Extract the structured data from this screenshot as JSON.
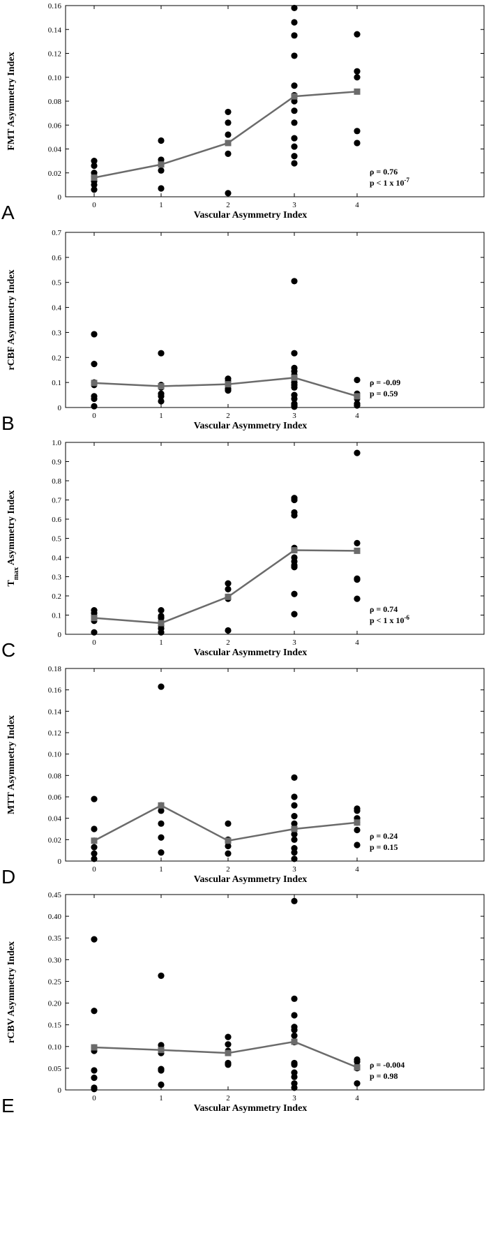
{
  "chart_data": [
    {
      "type": "scatter",
      "panel": "A",
      "xlabel": "Vascular Asymmetry Index",
      "ylabel_main": "FMT Asymmetry Index",
      "ylabel_sub": "",
      "ylabel_tail": "",
      "ylim": [
        0,
        0.16
      ],
      "yticks": [
        "0",
        "0.02",
        "0.04",
        "0.06",
        "0.08",
        "0.10",
        "0.12",
        "0.14",
        "0.16"
      ],
      "xticks": [
        "0",
        "1",
        "2",
        "3",
        "4"
      ],
      "points": {
        "0": [
          0.03,
          0.026,
          0.02,
          0.017,
          0.013,
          0.01,
          0.006
        ],
        "1": [
          0.047,
          0.031,
          0.022,
          0.007
        ],
        "2": [
          0.071,
          0.062,
          0.052,
          0.036,
          0.003
        ],
        "3": [
          0.158,
          0.146,
          0.135,
          0.118,
          0.093,
          0.085,
          0.08,
          0.072,
          0.062,
          0.049,
          0.042,
          0.034,
          0.028
        ],
        "4": [
          0.136,
          0.105,
          0.1,
          0.055,
          0.045
        ]
      },
      "mean_line": [
        0.016,
        0.027,
        0.045,
        0.084,
        0.088
      ],
      "stat_line1": "ρ = 0.76",
      "stat_line2": "p < 1 x 10",
      "stat_exp": "-7",
      "colors": {
        "points": "#000000",
        "mean": "#6b6b6b"
      }
    },
    {
      "type": "scatter",
      "panel": "B",
      "xlabel": "Vascular Asymmetry Index",
      "ylabel_main": "rCBF Asymmetry Index",
      "ylabel_sub": "",
      "ylabel_tail": "",
      "ylim": [
        0,
        0.7
      ],
      "yticks": [
        "0",
        "0.1",
        "0.2",
        "0.3",
        "0.4",
        "0.5",
        "0.6",
        "0.7"
      ],
      "xticks": [
        "0",
        "1",
        "2",
        "3",
        "4"
      ],
      "points": {
        "0": [
          0.293,
          0.174,
          0.1,
          0.09,
          0.045,
          0.035,
          0.005
        ],
        "1": [
          0.217,
          0.09,
          0.08,
          0.055,
          0.045,
          0.025
        ],
        "2": [
          0.115,
          0.105,
          0.09,
          0.075,
          0.068
        ],
        "3": [
          0.505,
          0.217,
          0.158,
          0.145,
          0.13,
          0.1,
          0.09,
          0.08,
          0.05,
          0.035,
          0.015,
          0.008,
          0.003
        ],
        "4": [
          0.11,
          0.055,
          0.045,
          0.035,
          0.015,
          0.008
        ]
      },
      "mean_line": [
        0.098,
        0.085,
        0.093,
        0.119,
        0.045
      ],
      "stat_line1": "ρ = -0.09",
      "stat_line2": "p = 0.59",
      "stat_exp": "",
      "colors": {
        "points": "#000000",
        "mean": "#6b6b6b"
      }
    },
    {
      "type": "scatter",
      "panel": "C",
      "xlabel": "Vascular Asymmetry Index",
      "ylabel_main": "T",
      "ylabel_sub": "max",
      "ylabel_tail": " Asymmetry Index",
      "ylim": [
        0,
        1.0
      ],
      "yticks": [
        "0",
        "0.1",
        "0.2",
        "0.3",
        "0.4",
        "0.5",
        "0.6",
        "0.7",
        "0.8",
        "0.9",
        "1.0"
      ],
      "xticks": [
        "0",
        "1",
        "2",
        "3",
        "4"
      ],
      "points": {
        "0": [
          0.125,
          0.11,
          0.095,
          0.07,
          0.01
        ],
        "1": [
          0.125,
          0.095,
          0.085,
          0.045,
          0.03,
          0.01
        ],
        "2": [
          0.265,
          0.235,
          0.195,
          0.185,
          0.02
        ],
        "3": [
          0.71,
          0.7,
          0.635,
          0.62,
          0.45,
          0.4,
          0.38,
          0.36,
          0.35,
          0.21,
          0.105
        ],
        "4": [
          0.945,
          0.475,
          0.29,
          0.285,
          0.185
        ]
      },
      "mean_line": [
        0.085,
        0.058,
        0.195,
        0.438,
        0.435
      ],
      "stat_line1": "ρ = 0.74",
      "stat_line2": "p < 1 x 10",
      "stat_exp": "-6",
      "colors": {
        "points": "#000000",
        "mean": "#6b6b6b"
      }
    },
    {
      "type": "scatter",
      "panel": "D",
      "xlabel": "Vascular Asymmetry Index",
      "ylabel_main": "MTT Asymmetry Index",
      "ylabel_sub": "",
      "ylabel_tail": "",
      "ylim": [
        0,
        0.18
      ],
      "yticks": [
        "0",
        "0.02",
        "0.04",
        "0.06",
        "0.08",
        "0.10",
        "0.12",
        "0.14",
        "0.16",
        "0.18"
      ],
      "xticks": [
        "0",
        "1",
        "2",
        "3",
        "4"
      ],
      "points": {
        "0": [
          0.058,
          0.03,
          0.019,
          0.013,
          0.007,
          0.002
        ],
        "1": [
          0.163,
          0.052,
          0.047,
          0.035,
          0.022,
          0.008
        ],
        "2": [
          0.035,
          0.02,
          0.018,
          0.014,
          0.007
        ],
        "3": [
          0.078,
          0.06,
          0.052,
          0.042,
          0.035,
          0.03,
          0.025,
          0.02,
          0.012,
          0.008,
          0.002
        ],
        "4": [
          0.049,
          0.047,
          0.04,
          0.036,
          0.029,
          0.015
        ]
      },
      "mean_line": [
        0.019,
        0.052,
        0.019,
        0.03,
        0.036
      ],
      "stat_line1": "ρ = 0.24",
      "stat_line2": "p = 0.15",
      "stat_exp": "",
      "colors": {
        "points": "#000000",
        "mean": "#6b6b6b"
      }
    },
    {
      "type": "scatter",
      "panel": "E",
      "xlabel": "Vascular Asymmetry Index",
      "ylabel_main": "rCBV Asymmetry Index",
      "ylabel_sub": "",
      "ylabel_tail": "",
      "ylim": [
        0,
        0.45
      ],
      "yticks": [
        "0",
        "0.05",
        "0.10",
        "0.15",
        "0.20",
        "0.25",
        "0.30",
        "0.35",
        "0.40",
        "0.45"
      ],
      "xticks": [
        "0",
        "1",
        "2",
        "3",
        "4"
      ],
      "points": {
        "0": [
          0.347,
          0.182,
          0.098,
          0.09,
          0.045,
          0.028,
          0.005,
          0.002
        ],
        "1": [
          0.263,
          0.103,
          0.095,
          0.085,
          0.048,
          0.045,
          0.012
        ],
        "2": [
          0.122,
          0.105,
          0.09,
          0.062,
          0.058
        ],
        "3": [
          0.435,
          0.21,
          0.172,
          0.145,
          0.138,
          0.125,
          0.11,
          0.062,
          0.058,
          0.04,
          0.03,
          0.015,
          0.005
        ],
        "4": [
          0.07,
          0.065,
          0.055,
          0.05,
          0.015
        ]
      },
      "mean_line": [
        0.098,
        0.092,
        0.085,
        0.111,
        0.052
      ],
      "stat_line1": "ρ = -0.004",
      "stat_line2": "p = 0.98",
      "stat_exp": "",
      "colors": {
        "points": "#000000",
        "mean": "#6b6b6b"
      }
    }
  ]
}
